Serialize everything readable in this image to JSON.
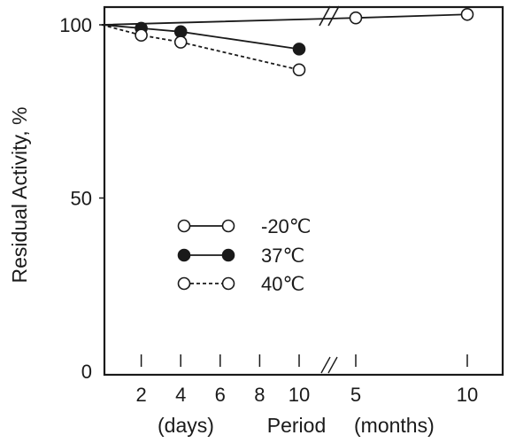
{
  "chart_data": {
    "type": "line",
    "ylabel": "Residual Activity, %",
    "xlabel_parts": {
      "left": "(days)",
      "center": "Period",
      "right": "(months)"
    },
    "ylim": [
      0,
      100
    ],
    "yticks": [
      "0",
      "50",
      "100"
    ],
    "x_segments": [
      {
        "unit": "days",
        "ticks": [
          "2",
          "4",
          "6",
          "8",
          "10"
        ]
      },
      {
        "unit": "months",
        "ticks": [
          "5",
          "10"
        ]
      }
    ],
    "legend": {
      "placement": "center-left"
    },
    "series": [
      {
        "name": "-20℃",
        "marker": "open-circle",
        "line": "solid",
        "points": [
          {
            "segment": "days",
            "x": 0,
            "y": 100
          },
          {
            "segment": "months",
            "x": 5,
            "y": 102
          },
          {
            "segment": "months",
            "x": 10,
            "y": 103
          }
        ]
      },
      {
        "name": "37℃",
        "marker": "filled-circle",
        "line": "solid",
        "points": [
          {
            "segment": "days",
            "x": 0,
            "y": 100
          },
          {
            "segment": "days",
            "x": 2,
            "y": 99
          },
          {
            "segment": "days",
            "x": 4,
            "y": 98
          },
          {
            "segment": "days",
            "x": 10,
            "y": 93
          }
        ]
      },
      {
        "name": "40℃",
        "marker": "open-circle",
        "line": "dashed",
        "points": [
          {
            "segment": "days",
            "x": 0,
            "y": 100
          },
          {
            "segment": "days",
            "x": 2,
            "y": 97
          },
          {
            "segment": "days",
            "x": 4,
            "y": 95
          },
          {
            "segment": "days",
            "x": 10,
            "y": 87
          }
        ]
      }
    ]
  }
}
